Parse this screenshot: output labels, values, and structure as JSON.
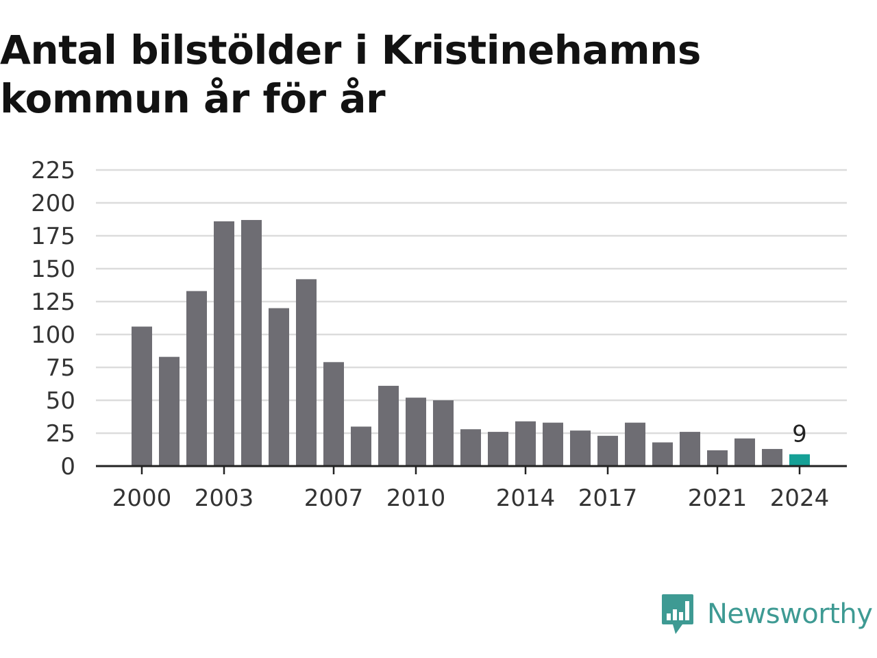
{
  "chart_data": {
    "type": "bar",
    "title": "Antal bilstölder i Kristinehamns kommun år för år",
    "x": [
      2000,
      2001,
      2002,
      2003,
      2004,
      2005,
      2006,
      2007,
      2008,
      2009,
      2010,
      2011,
      2012,
      2013,
      2014,
      2015,
      2016,
      2017,
      2018,
      2019,
      2020,
      2021,
      2022,
      2023,
      2024
    ],
    "values": [
      106,
      83,
      133,
      186,
      187,
      120,
      142,
      79,
      30,
      61,
      52,
      50,
      28,
      26,
      34,
      33,
      27,
      23,
      33,
      18,
      26,
      12,
      21,
      13,
      9
    ],
    "x_tick_labels": [
      "2000",
      "2003",
      "2007",
      "2010",
      "2014",
      "2017",
      "2021",
      "2024"
    ],
    "y_ticks": [
      0,
      25,
      50,
      75,
      100,
      125,
      150,
      175,
      200,
      225
    ],
    "ylim": [
      0,
      225
    ],
    "highlight": {
      "index": 24,
      "label": "9"
    },
    "colors": {
      "bar": "#6e6d73",
      "highlight": "#15a096",
      "grid": "#dcdcdc",
      "axis": "#222222",
      "text": "#333333"
    },
    "grid": true,
    "legend": "none"
  },
  "brand": {
    "name": "Newsworthy",
    "icon": "newsworthy-logo-icon",
    "color": "#3e9a93"
  }
}
